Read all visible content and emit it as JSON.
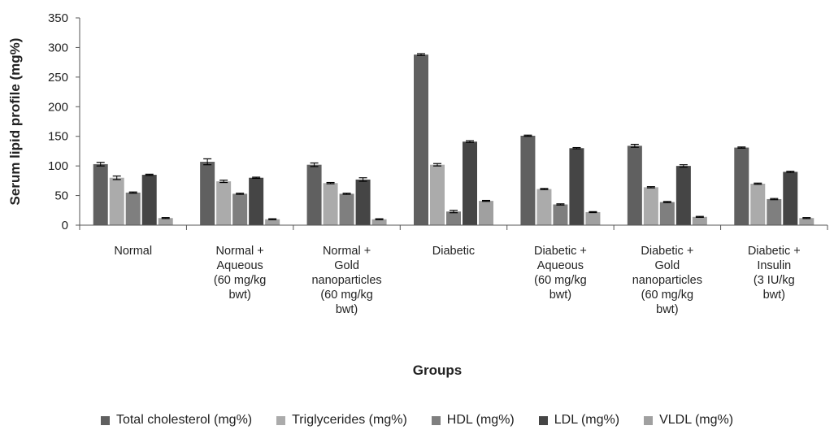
{
  "chart_data": {
    "type": "bar",
    "title": "",
    "xlabel": "Groups",
    "ylabel": "Serum lipid profile (mg%)",
    "ylim": [
      0,
      350
    ],
    "yticks": [
      0,
      50,
      100,
      150,
      200,
      250,
      300,
      350
    ],
    "grid": false,
    "legend_position": "bottom",
    "categories": [
      [
        "Normal"
      ],
      [
        "Normal +",
        "Aqueous",
        "(60 mg/kg",
        "bwt)"
      ],
      [
        "Normal +",
        "Gold",
        "nanoparticles",
        "(60 mg/kg",
        "bwt)"
      ],
      [
        "Diabetic"
      ],
      [
        "Diabetic +",
        "Aqueous",
        "(60 mg/kg",
        "bwt)"
      ],
      [
        "Diabetic +",
        "Gold",
        "nanoparticles",
        "(60 mg/kg",
        "bwt)"
      ],
      [
        "Diabetic +",
        "Insulin",
        "(3 IU/kg",
        "bwt)"
      ]
    ],
    "series": [
      {
        "name": "Total cholesterol (mg%)",
        "color": "#606060",
        "values": [
          103,
          107,
          102,
          288,
          151,
          134,
          131
        ],
        "errors": [
          3,
          5,
          3,
          1.5,
          1,
          2.5,
          1
        ]
      },
      {
        "name": "Triglycerides (mg%)",
        "color": "#ababab",
        "values": [
          80,
          74,
          71,
          102,
          61,
          64,
          70
        ],
        "errors": [
          3,
          2,
          1,
          2,
          1,
          1,
          1
        ]
      },
      {
        "name": "HDL (mg%)",
        "color": "#7f7f7f",
        "values": [
          55,
          53,
          53,
          23,
          35,
          39,
          44
        ],
        "errors": [
          1,
          1,
          1,
          2,
          1,
          1,
          1
        ]
      },
      {
        "name": "LDL (mg%)",
        "color": "#454545",
        "values": [
          85,
          80,
          77,
          141,
          130,
          100,
          90
        ],
        "errors": [
          1,
          1,
          3,
          1.5,
          1,
          2,
          1
        ]
      },
      {
        "name": "VLDL (mg%)",
        "color": "#a0a0a0",
        "values": [
          12,
          10,
          10,
          41,
          22,
          14,
          12
        ],
        "errors": [
          0.8,
          0.8,
          0.8,
          0.8,
          0.8,
          0.8,
          0.8
        ]
      }
    ]
  }
}
